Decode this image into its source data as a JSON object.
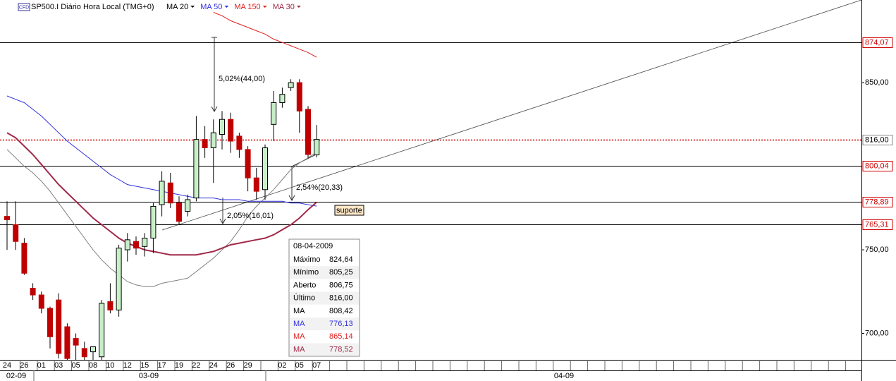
{
  "chart_data": {
    "type": "candlestick",
    "badge": "CFD",
    "title": "SP500.I Diário Hora Local (TMG+0)",
    "categories": [
      "24",
      null,
      "26",
      null,
      "01",
      null,
      "03",
      null,
      "05",
      null,
      "08",
      null,
      "10",
      null,
      "12",
      null,
      "15",
      null,
      "17",
      null,
      "19",
      null,
      "22",
      null,
      "24",
      null,
      "26",
      null,
      "29",
      null,
      null,
      null,
      "02",
      null,
      "05",
      null,
      "07"
    ],
    "month_labels": [
      "02-09",
      "03-09",
      "04-09"
    ],
    "open": [
      770,
      765,
      754,
      727,
      723,
      715,
      720,
      704,
      697,
      691,
      689,
      686,
      719,
      714,
      750,
      755,
      752,
      757,
      777,
      790,
      778,
      773,
      781,
      816,
      811,
      819,
      828,
      818,
      810,
      793,
      786,
      825,
      838,
      847,
      850,
      834,
      806.75
    ],
    "high": [
      779,
      779,
      757,
      730,
      725,
      716,
      724,
      706,
      700,
      695,
      692,
      720,
      730,
      753,
      760,
      758,
      760,
      778,
      797,
      796,
      782,
      783,
      830,
      824,
      828,
      833,
      832,
      820,
      812,
      799,
      813,
      845,
      847,
      852,
      852,
      836,
      824.64
    ],
    "low": [
      750,
      750,
      735,
      720,
      712,
      691,
      685,
      684,
      684,
      684,
      684,
      684,
      712,
      710,
      743,
      747,
      746,
      748,
      770,
      775,
      765,
      770,
      779,
      805,
      790,
      810,
      808,
      805,
      785,
      780,
      780,
      815,
      835,
      845,
      820,
      805,
      805.25
    ],
    "close": [
      768,
      755,
      736,
      723,
      715,
      698,
      688,
      685,
      693,
      686,
      692,
      718,
      714,
      751,
      756,
      751,
      757,
      776,
      791,
      778,
      767,
      780,
      816,
      811,
      820,
      828,
      815,
      810,
      793,
      785,
      811,
      838,
      843,
      850,
      833,
      807,
      816
    ],
    "up_color": "#c8f0c8",
    "down_color": "#c00000",
    "series": [
      {
        "name": "MA 20",
        "color": "#808080",
        "width": 1,
        "values": [
          810,
          805,
          800,
          796,
          791,
          785,
          778,
          771,
          764,
          757,
          750,
          744,
          739,
          735,
          731,
          729,
          728,
          728,
          730,
          731,
          732,
          733,
          737,
          741,
          745,
          750,
          755,
          762,
          770,
          776,
          781,
          786,
          792,
          798,
          802,
          805,
          808.42
        ]
      },
      {
        "name": "MA 50",
        "color": "#3030e0",
        "width": 1,
        "values": [
          842,
          840,
          838,
          834,
          830,
          825,
          820,
          815,
          811,
          807,
          803,
          799,
          795,
          792,
          789,
          788,
          787,
          786,
          785,
          784,
          783,
          782,
          781,
          781,
          781,
          780,
          780,
          780,
          779,
          779,
          779,
          779,
          779,
          778,
          778,
          777,
          776.13
        ]
      },
      {
        "name": "MA 150",
        "color": "#e02020",
        "width": 1,
        "values": [
          null,
          null,
          null,
          null,
          null,
          null,
          null,
          null,
          null,
          null,
          null,
          null,
          null,
          null,
          null,
          null,
          null,
          null,
          null,
          null,
          null,
          null,
          null,
          null,
          892,
          890,
          887,
          885,
          883,
          881,
          879,
          876,
          874,
          872,
          870,
          868,
          865.14
        ]
      },
      {
        "name": "MA 30",
        "color": "#a02848",
        "width": 2,
        "values": [
          820,
          817,
          812,
          807,
          801,
          795,
          789,
          784,
          779,
          774,
          769,
          765,
          761,
          757,
          754,
          752,
          750,
          749,
          748,
          747,
          747,
          747,
          747,
          748,
          749,
          751,
          753,
          754,
          755,
          756,
          757,
          759,
          762,
          765,
          769,
          774,
          778.52
        ]
      }
    ],
    "ylim": [
      684.2,
      899.4
    ],
    "yticks": [
      {
        "value": 700,
        "label": "700,00"
      },
      {
        "value": 750,
        "label": "750,00"
      },
      {
        "value": 850,
        "label": "850,00"
      }
    ],
    "levels": [
      {
        "value": 874.07,
        "label": "874,07",
        "dotted": false
      },
      {
        "value": 816,
        "label": "816,00",
        "dotted": true
      },
      {
        "value": 800.04,
        "label": "800,04",
        "dotted": false
      },
      {
        "value": 778.89,
        "label": "778,89",
        "dotted": false
      },
      {
        "value": 765.31,
        "label": "765,31",
        "dotted": false
      }
    ],
    "annotations": [
      "5,02%(44,00)",
      "2,54%(20,33)",
      "2,05%(16,01)",
      "suporte"
    ],
    "tooltip": {
      "date": "08-04-2009",
      "rows": [
        [
          "Máximo",
          "824,64"
        ],
        [
          "Mínimo",
          "805,25"
        ],
        [
          "Aberto",
          "806,75"
        ],
        [
          "Último",
          "816,00"
        ],
        [
          "MA",
          "808,42"
        ],
        [
          "MA",
          "776,13"
        ],
        [
          "MA",
          "865,14"
        ],
        [
          "MA",
          "778,52"
        ]
      ]
    }
  }
}
